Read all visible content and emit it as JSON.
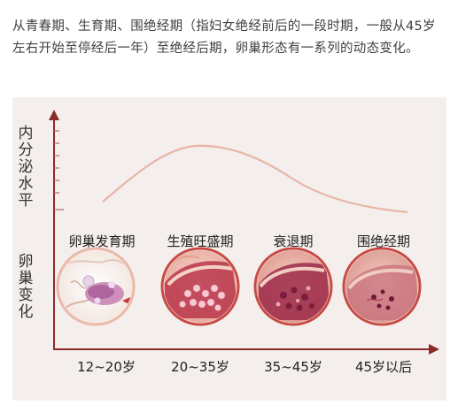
{
  "intro_text": "从青春期、生育期、围绝经期（指妇女绝经前后的一段时期，一般从45岁左右开始至停经后一年）至绝经后期，卵巢形态有一系列的动态变化。",
  "y_axis_top_label": "内分泌水平",
  "y_axis_bottom_label": "卵巢变化",
  "stages": [
    {
      "name": "卵巢发育期",
      "age": "12~20岁",
      "icon": "developing-ovary-icon"
    },
    {
      "name": "生殖旺盛期",
      "age": "20~35岁",
      "icon": "peak-ovary-icon"
    },
    {
      "name": "衰退期",
      "age": "35~45岁",
      "icon": "declining-ovary-icon"
    },
    {
      "name": "围绝经期",
      "age": "45岁以后",
      "icon": "perimenopause-ovary-icon"
    }
  ],
  "colors": {
    "axis": "#8b2a2a",
    "curve": "#e8b4a8",
    "panel": "#f4efec",
    "ring": "#c23b3b"
  }
}
